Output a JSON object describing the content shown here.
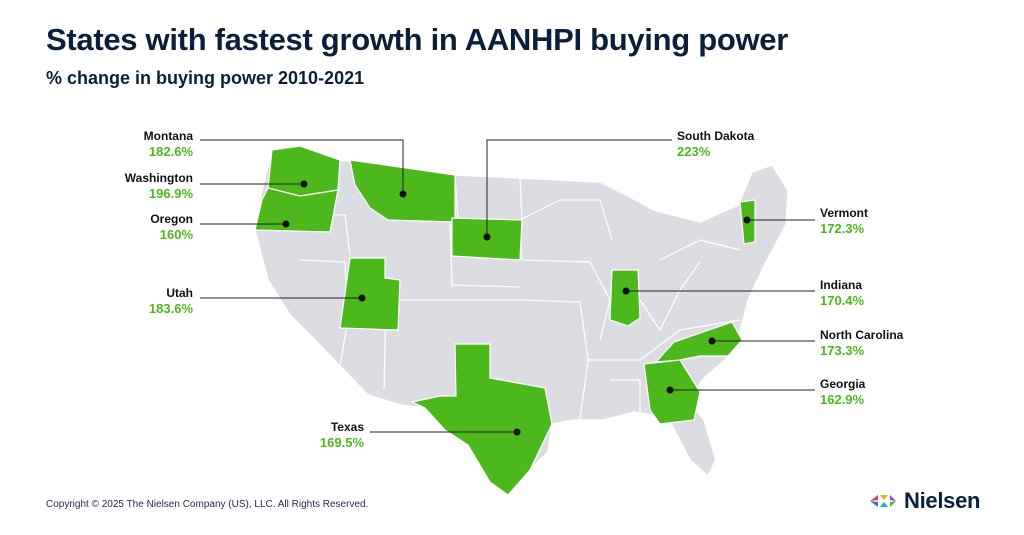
{
  "title": "States with fastest growth in AANHPI buying power",
  "subtitle": "% change in buying power 2010-2021",
  "colors": {
    "highlight": "#4cb81c",
    "base_state": "#dcdde3",
    "border": "#ffffff",
    "text_dark": "#0b1f3a",
    "percent_text": "#4cb81c"
  },
  "states": [
    {
      "name": "Montana",
      "value": "182.6%"
    },
    {
      "name": "Washington",
      "value": "196.9%"
    },
    {
      "name": "Oregon",
      "value": "160%"
    },
    {
      "name": "Utah",
      "value": "183.6%"
    },
    {
      "name": "Texas",
      "value": "169.5%"
    },
    {
      "name": "South Dakota",
      "value": "223%"
    },
    {
      "name": "Vermont",
      "value": "172.3%"
    },
    {
      "name": "Indiana",
      "value": "170.4%"
    },
    {
      "name": "North Carolina",
      "value": "173.3%"
    },
    {
      "name": "Georgia",
      "value": "162.9%"
    }
  ],
  "footer": {
    "copyright": "Copyright © 2025 The Nielsen Company (US), LLC. All Rights Reserved.",
    "logo_text": "Nielsen"
  }
}
